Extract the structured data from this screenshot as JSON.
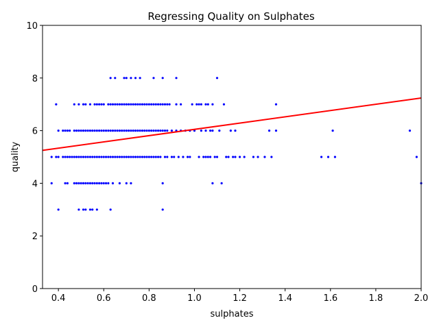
{
  "chart_data": {
    "type": "scatter",
    "title": "Regressing Quality on Sulphates",
    "xlabel": "sulphates",
    "ylabel": "quality",
    "xlim": [
      0.33,
      2.0
    ],
    "ylim": [
      0,
      10
    ],
    "x_ticks": [
      "0.4",
      "0.6",
      "0.8",
      "1.0",
      "1.2",
      "1.4",
      "1.6",
      "1.8",
      "2.0"
    ],
    "y_ticks": [
      "0",
      "2",
      "4",
      "6",
      "8",
      "10"
    ],
    "grid": false,
    "legend": "none",
    "point_color": "#0000ff",
    "line_color": "#ff0000",
    "regression_line": {
      "x": [
        0.33,
        2.0
      ],
      "y": [
        5.25,
        7.24
      ]
    },
    "points": [
      [
        0.63,
        8
      ],
      [
        0.65,
        8
      ],
      [
        0.69,
        8
      ],
      [
        0.7,
        8
      ],
      [
        0.72,
        8
      ],
      [
        0.74,
        8
      ],
      [
        0.76,
        8
      ],
      [
        0.82,
        8
      ],
      [
        0.86,
        8
      ],
      [
        0.92,
        8
      ],
      [
        1.1,
        8
      ],
      [
        0.39,
        7
      ],
      [
        0.47,
        7
      ],
      [
        0.49,
        7
      ],
      [
        0.51,
        7
      ],
      [
        0.52,
        7
      ],
      [
        0.54,
        7
      ],
      [
        0.56,
        7
      ],
      [
        0.57,
        7
      ],
      [
        0.58,
        7
      ],
      [
        0.59,
        7
      ],
      [
        0.6,
        7
      ],
      [
        0.62,
        7
      ],
      [
        0.63,
        7
      ],
      [
        0.64,
        7
      ],
      [
        0.65,
        7
      ],
      [
        0.66,
        7
      ],
      [
        0.67,
        7
      ],
      [
        0.68,
        7
      ],
      [
        0.69,
        7
      ],
      [
        0.7,
        7
      ],
      [
        0.71,
        7
      ],
      [
        0.72,
        7
      ],
      [
        0.73,
        7
      ],
      [
        0.74,
        7
      ],
      [
        0.75,
        7
      ],
      [
        0.76,
        7
      ],
      [
        0.77,
        7
      ],
      [
        0.78,
        7
      ],
      [
        0.79,
        7
      ],
      [
        0.8,
        7
      ],
      [
        0.81,
        7
      ],
      [
        0.82,
        7
      ],
      [
        0.83,
        7
      ],
      [
        0.84,
        7
      ],
      [
        0.85,
        7
      ],
      [
        0.86,
        7
      ],
      [
        0.87,
        7
      ],
      [
        0.88,
        7
      ],
      [
        0.89,
        7
      ],
      [
        0.92,
        7
      ],
      [
        0.94,
        7
      ],
      [
        0.99,
        7
      ],
      [
        1.01,
        7
      ],
      [
        1.02,
        7
      ],
      [
        1.03,
        7
      ],
      [
        1.05,
        7
      ],
      [
        1.06,
        7
      ],
      [
        1.08,
        7
      ],
      [
        1.13,
        7
      ],
      [
        1.36,
        7
      ],
      [
        0.4,
        6
      ],
      [
        0.42,
        6
      ],
      [
        0.43,
        6
      ],
      [
        0.44,
        6
      ],
      [
        0.45,
        6
      ],
      [
        0.47,
        6
      ],
      [
        0.48,
        6
      ],
      [
        0.49,
        6
      ],
      [
        0.5,
        6
      ],
      [
        0.51,
        6
      ],
      [
        0.52,
        6
      ],
      [
        0.53,
        6
      ],
      [
        0.54,
        6
      ],
      [
        0.55,
        6
      ],
      [
        0.56,
        6
      ],
      [
        0.57,
        6
      ],
      [
        0.58,
        6
      ],
      [
        0.59,
        6
      ],
      [
        0.6,
        6
      ],
      [
        0.61,
        6
      ],
      [
        0.62,
        6
      ],
      [
        0.63,
        6
      ],
      [
        0.64,
        6
      ],
      [
        0.65,
        6
      ],
      [
        0.66,
        6
      ],
      [
        0.67,
        6
      ],
      [
        0.68,
        6
      ],
      [
        0.69,
        6
      ],
      [
        0.7,
        6
      ],
      [
        0.71,
        6
      ],
      [
        0.72,
        6
      ],
      [
        0.73,
        6
      ],
      [
        0.74,
        6
      ],
      [
        0.75,
        6
      ],
      [
        0.76,
        6
      ],
      [
        0.77,
        6
      ],
      [
        0.78,
        6
      ],
      [
        0.79,
        6
      ],
      [
        0.8,
        6
      ],
      [
        0.81,
        6
      ],
      [
        0.82,
        6
      ],
      [
        0.83,
        6
      ],
      [
        0.84,
        6
      ],
      [
        0.85,
        6
      ],
      [
        0.86,
        6
      ],
      [
        0.87,
        6
      ],
      [
        0.88,
        6
      ],
      [
        0.9,
        6
      ],
      [
        0.92,
        6
      ],
      [
        0.94,
        6
      ],
      [
        0.96,
        6
      ],
      [
        0.98,
        6
      ],
      [
        1.0,
        6
      ],
      [
        1.03,
        6
      ],
      [
        1.05,
        6
      ],
      [
        1.07,
        6
      ],
      [
        1.08,
        6
      ],
      [
        1.11,
        6
      ],
      [
        1.16,
        6
      ],
      [
        1.18,
        6
      ],
      [
        1.33,
        6
      ],
      [
        1.36,
        6
      ],
      [
        1.61,
        6
      ],
      [
        1.95,
        6
      ],
      [
        0.37,
        5
      ],
      [
        0.39,
        5
      ],
      [
        0.4,
        5
      ],
      [
        0.42,
        5
      ],
      [
        0.43,
        5
      ],
      [
        0.44,
        5
      ],
      [
        0.45,
        5
      ],
      [
        0.46,
        5
      ],
      [
        0.47,
        5
      ],
      [
        0.48,
        5
      ],
      [
        0.49,
        5
      ],
      [
        0.5,
        5
      ],
      [
        0.51,
        5
      ],
      [
        0.52,
        5
      ],
      [
        0.53,
        5
      ],
      [
        0.54,
        5
      ],
      [
        0.55,
        5
      ],
      [
        0.56,
        5
      ],
      [
        0.57,
        5
      ],
      [
        0.58,
        5
      ],
      [
        0.59,
        5
      ],
      [
        0.6,
        5
      ],
      [
        0.61,
        5
      ],
      [
        0.62,
        5
      ],
      [
        0.63,
        5
      ],
      [
        0.64,
        5
      ],
      [
        0.65,
        5
      ],
      [
        0.66,
        5
      ],
      [
        0.67,
        5
      ],
      [
        0.68,
        5
      ],
      [
        0.69,
        5
      ],
      [
        0.7,
        5
      ],
      [
        0.71,
        5
      ],
      [
        0.72,
        5
      ],
      [
        0.73,
        5
      ],
      [
        0.74,
        5
      ],
      [
        0.75,
        5
      ],
      [
        0.76,
        5
      ],
      [
        0.77,
        5
      ],
      [
        0.78,
        5
      ],
      [
        0.79,
        5
      ],
      [
        0.8,
        5
      ],
      [
        0.81,
        5
      ],
      [
        0.82,
        5
      ],
      [
        0.83,
        5
      ],
      [
        0.84,
        5
      ],
      [
        0.85,
        5
      ],
      [
        0.87,
        5
      ],
      [
        0.88,
        5
      ],
      [
        0.9,
        5
      ],
      [
        0.91,
        5
      ],
      [
        0.93,
        5
      ],
      [
        0.95,
        5
      ],
      [
        0.97,
        5
      ],
      [
        0.98,
        5
      ],
      [
        1.02,
        5
      ],
      [
        1.04,
        5
      ],
      [
        1.05,
        5
      ],
      [
        1.06,
        5
      ],
      [
        1.07,
        5
      ],
      [
        1.09,
        5
      ],
      [
        1.1,
        5
      ],
      [
        1.14,
        5
      ],
      [
        1.15,
        5
      ],
      [
        1.17,
        5
      ],
      [
        1.18,
        5
      ],
      [
        1.2,
        5
      ],
      [
        1.22,
        5
      ],
      [
        1.26,
        5
      ],
      [
        1.28,
        5
      ],
      [
        1.31,
        5
      ],
      [
        1.34,
        5
      ],
      [
        1.56,
        5
      ],
      [
        1.59,
        5
      ],
      [
        1.62,
        5
      ],
      [
        1.98,
        5
      ],
      [
        0.37,
        4
      ],
      [
        0.43,
        4
      ],
      [
        0.44,
        4
      ],
      [
        0.47,
        4
      ],
      [
        0.48,
        4
      ],
      [
        0.49,
        4
      ],
      [
        0.5,
        4
      ],
      [
        0.51,
        4
      ],
      [
        0.52,
        4
      ],
      [
        0.53,
        4
      ],
      [
        0.54,
        4
      ],
      [
        0.55,
        4
      ],
      [
        0.56,
        4
      ],
      [
        0.57,
        4
      ],
      [
        0.58,
        4
      ],
      [
        0.59,
        4
      ],
      [
        0.6,
        4
      ],
      [
        0.61,
        4
      ],
      [
        0.62,
        4
      ],
      [
        0.64,
        4
      ],
      [
        0.67,
        4
      ],
      [
        0.7,
        4
      ],
      [
        0.72,
        4
      ],
      [
        0.86,
        4
      ],
      [
        1.08,
        4
      ],
      [
        1.12,
        4
      ],
      [
        2.0,
        4
      ],
      [
        0.4,
        3
      ],
      [
        0.49,
        3
      ],
      [
        0.51,
        3
      ],
      [
        0.52,
        3
      ],
      [
        0.54,
        3
      ],
      [
        0.55,
        3
      ],
      [
        0.57,
        3
      ],
      [
        0.63,
        3
      ],
      [
        0.86,
        3
      ]
    ]
  }
}
